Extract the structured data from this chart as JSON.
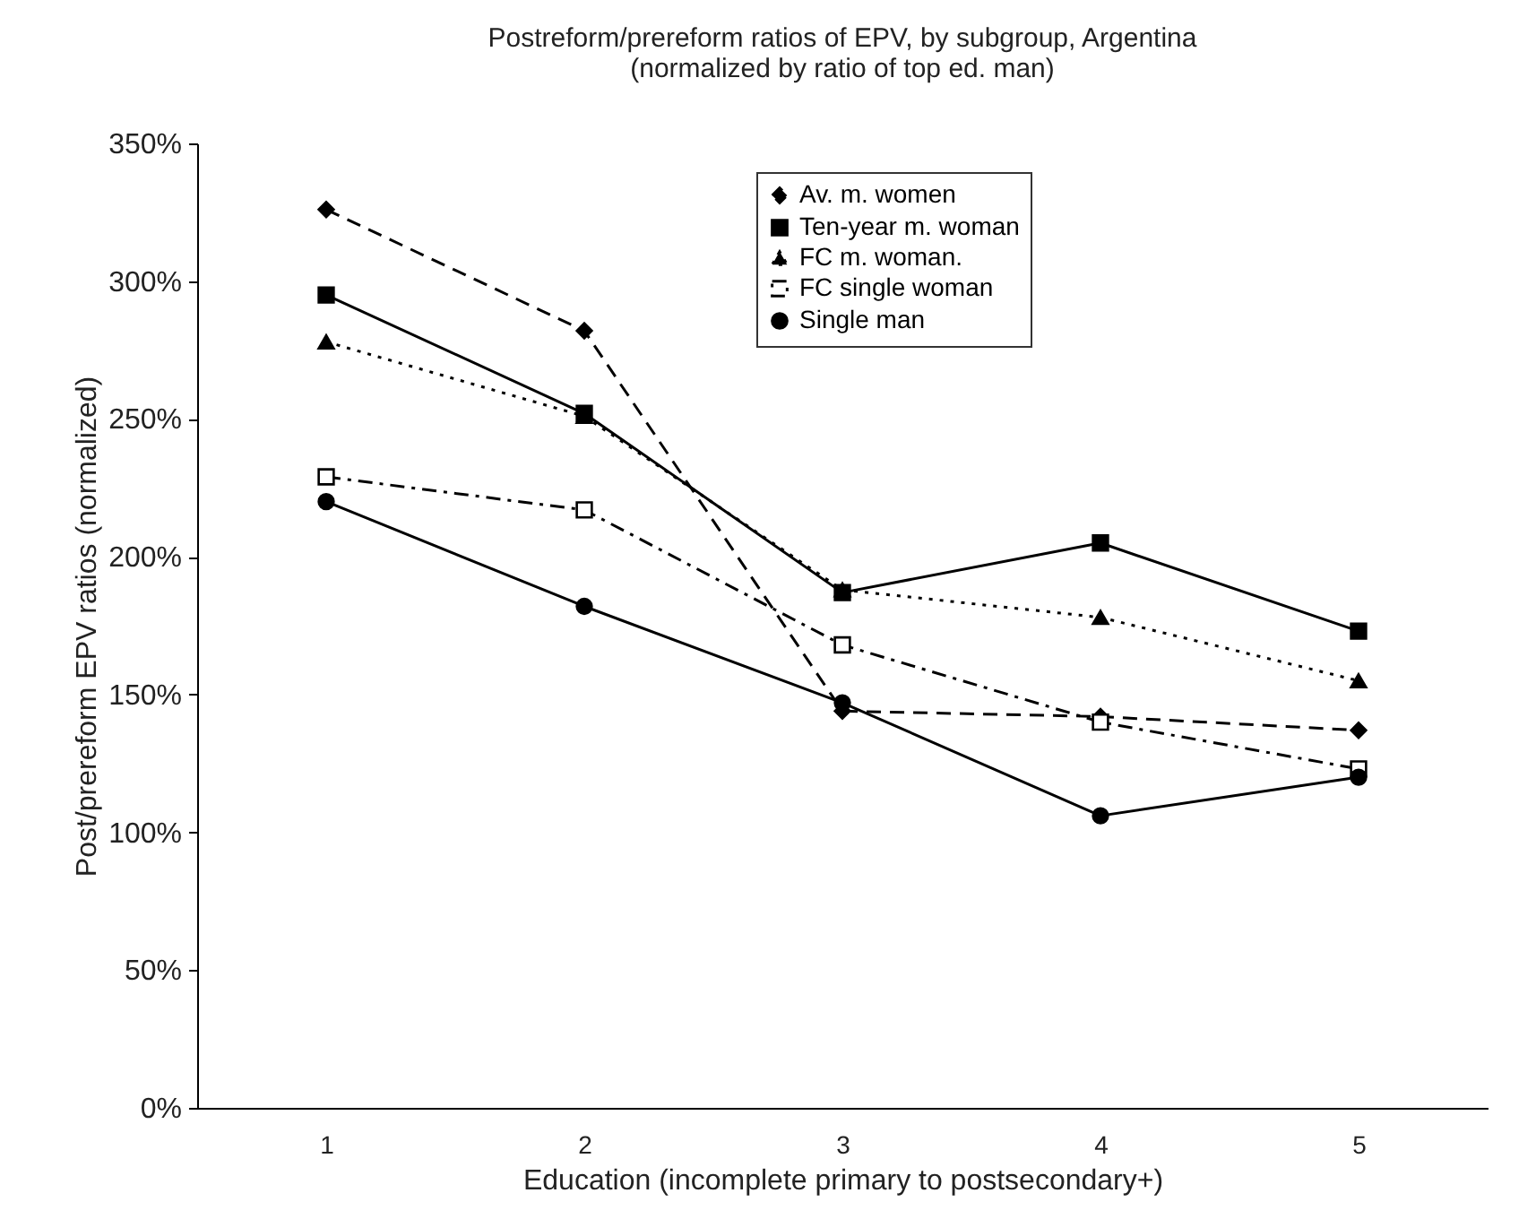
{
  "chart_data": {
    "type": "line",
    "title": "Postreform/prereform ratios of EPV, by subgroup, Argentina",
    "subtitle": "(normalized by ratio of top ed. man)",
    "xlabel": "Education (incomplete primary to postsecondary+)",
    "ylabel": "Post/prereform EPV ratios (normalized)",
    "categories": [
      "1",
      "2",
      "3",
      "4",
      "5"
    ],
    "ylim": [
      0,
      350
    ],
    "yticks": [
      {
        "value": 0,
        "label": "0%"
      },
      {
        "value": 50,
        "label": "50%"
      },
      {
        "value": 100,
        "label": "100%"
      },
      {
        "value": 150,
        "label": "150%"
      },
      {
        "value": 200,
        "label": "200%"
      },
      {
        "value": 250,
        "label": "250%"
      },
      {
        "value": 300,
        "label": "300%"
      },
      {
        "value": 350,
        "label": "350%"
      }
    ],
    "grid": false,
    "legend": "top right",
    "series": [
      {
        "name": "Av. m. women",
        "color": "#000000",
        "marker": "diamond",
        "line_style": "dashed",
        "values": [
          326,
          282,
          144,
          142,
          137
        ]
      },
      {
        "name": "Ten-year m. woman",
        "color": "#000000",
        "marker": "square",
        "line_style": "solid",
        "values": [
          295,
          252,
          187,
          205,
          173
        ]
      },
      {
        "name": "FC m. woman.",
        "color": "#000000",
        "marker": "triangle",
        "line_style": "dotted",
        "values": [
          278,
          251,
          188,
          178,
          155
        ]
      },
      {
        "name": "FC single woman",
        "color": "#000000",
        "marker": "square-open",
        "line_style": "dashdot",
        "values": [
          229,
          217,
          168,
          140,
          123
        ]
      },
      {
        "name": "Single man",
        "color": "#000000",
        "marker": "circle",
        "line_style": "solid",
        "values": [
          220,
          182,
          147,
          106,
          120
        ]
      }
    ]
  }
}
